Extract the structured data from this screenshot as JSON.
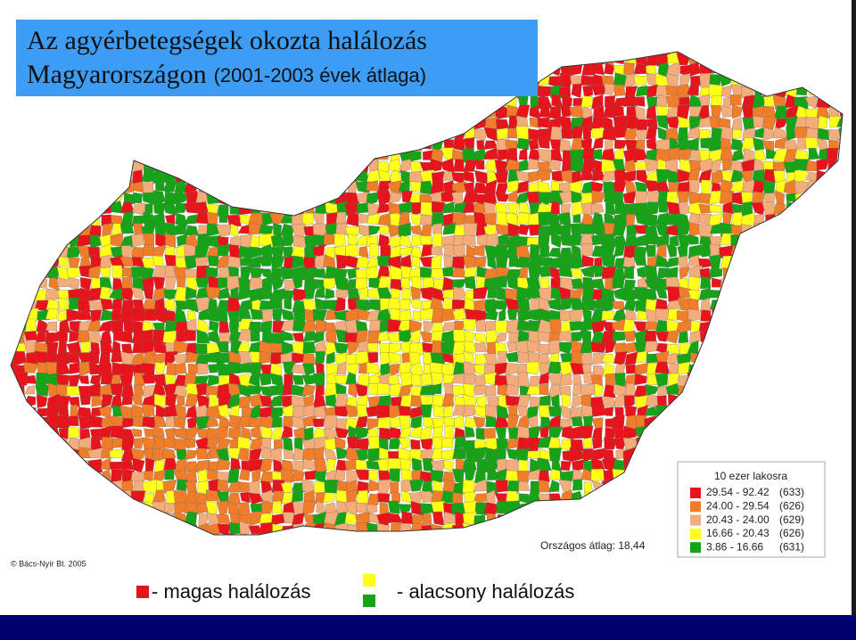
{
  "title": {
    "line1": "Az agyérbetegségek okozta halálozás",
    "line2_main": "Magyarországon",
    "line2_sub": "(2001-2003 évek átlaga)"
  },
  "legend": {
    "title": "10 ezer lakosra",
    "classes": [
      {
        "range": "29.54 - 92.42",
        "count": "(633)",
        "color": "#e8141b"
      },
      {
        "range": "24.00 - 29.54",
        "count": "(626)",
        "color": "#ef7d2a"
      },
      {
        "range": "20.43 - 24.00",
        "count": "(629)",
        "color": "#f4ad7a"
      },
      {
        "range": "16.66 - 20.43",
        "count": "(626)",
        "color": "#ffff1a"
      },
      {
        "range": "3.86 - 16.66",
        "count": "(631)",
        "color": "#17a317"
      }
    ]
  },
  "national_average": "Országos átlag: 18,44",
  "credit": "© Bács-Nyír Bt. 2005",
  "bottom_legend": {
    "high": "- magas halálozás",
    "low": "- alacsony halálozás"
  }
}
